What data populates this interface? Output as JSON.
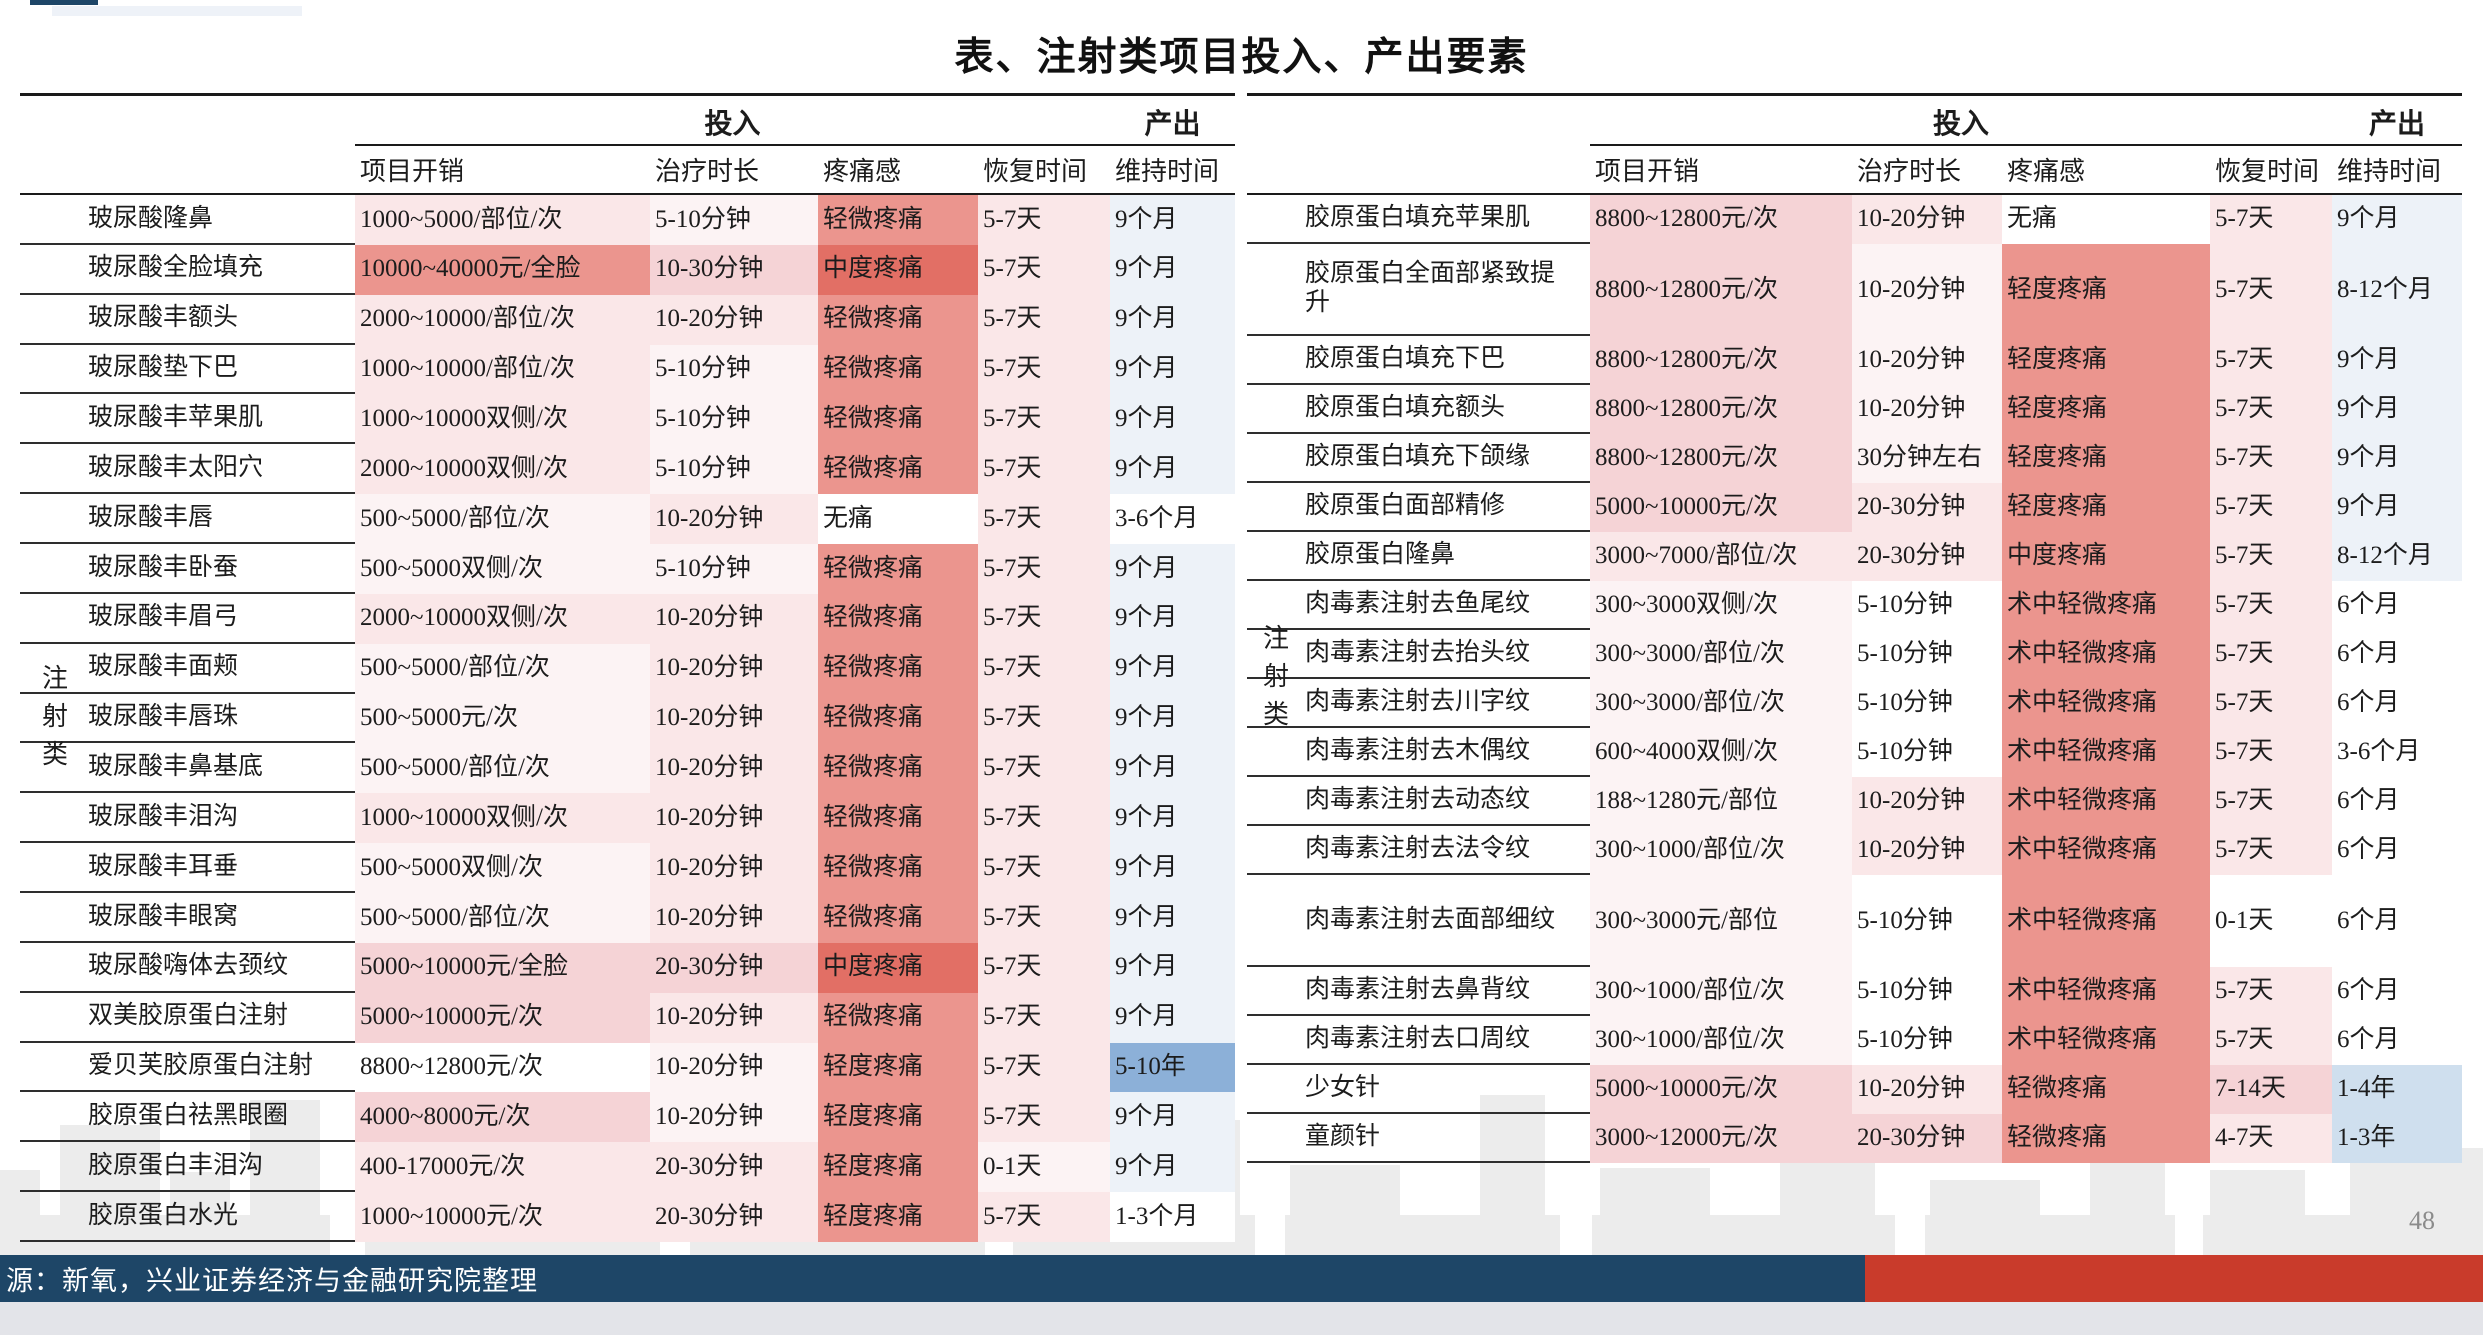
{
  "page": {
    "title": "表、注射类项目投入、产出要素",
    "page_number": "48",
    "source_text": "源：新氧，兴业证券经济与金融研究院整理",
    "category_vertical_label": "注射类"
  },
  "palette": {
    "w": "#ffffff",
    "p1": "#fcf3f4",
    "p2": "#fae7e8",
    "p3": "#f5d3d6",
    "p5": "#eb958e",
    "p6": "#e26f65",
    "b1": "#edf2f8",
    "b2": "#cfdfee",
    "b3": "#8cb0d8",
    "navy": "#1e4667",
    "red": "#c93b2b",
    "skyline_gray": "#ececec"
  },
  "headers": {
    "group_input": "投入",
    "group_output": "产出",
    "cost": "项目开销",
    "duration": "治疗时长",
    "pain": "疼痛感",
    "recovery": "恢复时间",
    "maintain": "维持时间"
  },
  "left_table": {
    "rows": [
      {
        "n": "玻尿酸隆鼻",
        "cost": [
          "1000~5000/部位/次",
          "p2"
        ],
        "dur": [
          "5-10分钟",
          "p1"
        ],
        "pain": [
          "轻微疼痛",
          "p5"
        ],
        "rec": [
          "5-7天",
          "p2"
        ],
        "keep": [
          "9个月",
          "b1"
        ]
      },
      {
        "n": "玻尿酸全脸填充",
        "cost": [
          "10000~40000元/全脸",
          "p5"
        ],
        "dur": [
          "10-30分钟",
          "p3"
        ],
        "pain": [
          "中度疼痛",
          "p6"
        ],
        "rec": [
          "5-7天",
          "p2"
        ],
        "keep": [
          "9个月",
          "b1"
        ]
      },
      {
        "n": "玻尿酸丰额头",
        "cost": [
          "2000~10000/部位/次",
          "p2"
        ],
        "dur": [
          "10-20分钟",
          "p2"
        ],
        "pain": [
          "轻微疼痛",
          "p5"
        ],
        "rec": [
          "5-7天",
          "p2"
        ],
        "keep": [
          "9个月",
          "b1"
        ]
      },
      {
        "n": "玻尿酸垫下巴",
        "cost": [
          "1000~10000/部位/次",
          "p2"
        ],
        "dur": [
          "5-10分钟",
          "p1"
        ],
        "pain": [
          "轻微疼痛",
          "p5"
        ],
        "rec": [
          "5-7天",
          "p2"
        ],
        "keep": [
          "9个月",
          "b1"
        ]
      },
      {
        "n": "玻尿酸丰苹果肌",
        "cost": [
          "1000~10000双侧/次",
          "p2"
        ],
        "dur": [
          "5-10分钟",
          "p1"
        ],
        "pain": [
          "轻微疼痛",
          "p5"
        ],
        "rec": [
          "5-7天",
          "p2"
        ],
        "keep": [
          "9个月",
          "b1"
        ]
      },
      {
        "n": "玻尿酸丰太阳穴",
        "cost": [
          "2000~10000双侧/次",
          "p2"
        ],
        "dur": [
          "5-10分钟",
          "p1"
        ],
        "pain": [
          "轻微疼痛",
          "p5"
        ],
        "rec": [
          "5-7天",
          "p2"
        ],
        "keep": [
          "9个月",
          "b1"
        ]
      },
      {
        "n": "玻尿酸丰唇",
        "cost": [
          "500~5000/部位/次",
          "p1"
        ],
        "dur": [
          "10-20分钟",
          "p2"
        ],
        "pain": [
          "无痛",
          "w"
        ],
        "rec": [
          "5-7天",
          "p2"
        ],
        "keep": [
          "3-6个月",
          "w"
        ]
      },
      {
        "n": "玻尿酸丰卧蚕",
        "cost": [
          "500~5000双侧/次",
          "p1"
        ],
        "dur": [
          "5-10分钟",
          "p1"
        ],
        "pain": [
          "轻微疼痛",
          "p5"
        ],
        "rec": [
          "5-7天",
          "p2"
        ],
        "keep": [
          "9个月",
          "b1"
        ]
      },
      {
        "n": "玻尿酸丰眉弓",
        "cost": [
          "2000~10000双侧/次",
          "p2"
        ],
        "dur": [
          "10-20分钟",
          "p2"
        ],
        "pain": [
          "轻微疼痛",
          "p5"
        ],
        "rec": [
          "5-7天",
          "p2"
        ],
        "keep": [
          "9个月",
          "b1"
        ]
      },
      {
        "n": "玻尿酸丰面颊",
        "cost": [
          "500~5000/部位/次",
          "p1"
        ],
        "dur": [
          "10-20分钟",
          "p2"
        ],
        "pain": [
          "轻微疼痛",
          "p5"
        ],
        "rec": [
          "5-7天",
          "p2"
        ],
        "keep": [
          "9个月",
          "b1"
        ]
      },
      {
        "n": "玻尿酸丰唇珠",
        "cost": [
          "500~5000元/次",
          "p1"
        ],
        "dur": [
          "10-20分钟",
          "p2"
        ],
        "pain": [
          "轻微疼痛",
          "p5"
        ],
        "rec": [
          "5-7天",
          "p2"
        ],
        "keep": [
          "9个月",
          "b1"
        ]
      },
      {
        "n": "玻尿酸丰鼻基底",
        "cost": [
          "500~5000/部位/次",
          "p1"
        ],
        "dur": [
          "10-20分钟",
          "p2"
        ],
        "pain": [
          "轻微疼痛",
          "p5"
        ],
        "rec": [
          "5-7天",
          "p2"
        ],
        "keep": [
          "9个月",
          "b1"
        ]
      },
      {
        "n": "玻尿酸丰泪沟",
        "cost": [
          "1000~10000双侧/次",
          "p2"
        ],
        "dur": [
          "10-20分钟",
          "p2"
        ],
        "pain": [
          "轻微疼痛",
          "p5"
        ],
        "rec": [
          "5-7天",
          "p2"
        ],
        "keep": [
          "9个月",
          "b1"
        ]
      },
      {
        "n": "玻尿酸丰耳垂",
        "cost": [
          "500~5000双侧/次",
          "p1"
        ],
        "dur": [
          "10-20分钟",
          "p2"
        ],
        "pain": [
          "轻微疼痛",
          "p5"
        ],
        "rec": [
          "5-7天",
          "p2"
        ],
        "keep": [
          "9个月",
          "b1"
        ]
      },
      {
        "n": "玻尿酸丰眼窝",
        "cost": [
          "500~5000/部位/次",
          "p1"
        ],
        "dur": [
          "10-20分钟",
          "p2"
        ],
        "pain": [
          "轻微疼痛",
          "p5"
        ],
        "rec": [
          "5-7天",
          "p2"
        ],
        "keep": [
          "9个月",
          "b1"
        ]
      },
      {
        "n": "玻尿酸嗨体去颈纹",
        "cost": [
          "5000~10000元/全脸",
          "p3"
        ],
        "dur": [
          "20-30分钟",
          "p3"
        ],
        "pain": [
          "中度疼痛",
          "p6"
        ],
        "rec": [
          "5-7天",
          "p2"
        ],
        "keep": [
          "9个月",
          "b1"
        ]
      },
      {
        "n": "双美胶原蛋白注射",
        "cost": [
          "5000~10000元/次",
          "p3"
        ],
        "dur": [
          "10-20分钟",
          "p2"
        ],
        "pain": [
          "轻微疼痛",
          "p5"
        ],
        "rec": [
          "5-7天",
          "p2"
        ],
        "keep": [
          "9个月",
          "b1"
        ]
      },
      {
        "n": "爱贝芙胶原蛋白注射",
        "cost": [
          "8800~12800元/次",
          "w"
        ],
        "dur": [
          "10-20分钟",
          "p1"
        ],
        "pain": [
          "轻度疼痛",
          "p5"
        ],
        "rec": [
          "5-7天",
          "p2"
        ],
        "keep": [
          "5-10年",
          "b3"
        ]
      },
      {
        "n": "胶原蛋白祛黑眼圈",
        "cost": [
          "4000~8000元/次",
          "p3"
        ],
        "dur": [
          "10-20分钟",
          "p1"
        ],
        "pain": [
          "轻度疼痛",
          "p5"
        ],
        "rec": [
          "5-7天",
          "p2"
        ],
        "keep": [
          "9个月",
          "b1"
        ]
      },
      {
        "n": "胶原蛋白丰泪沟",
        "cost": [
          "400-17000元/次",
          "p2"
        ],
        "dur": [
          "20-30分钟",
          "p2"
        ],
        "pain": [
          "轻度疼痛",
          "p5"
        ],
        "rec": [
          "0-1天",
          "p1"
        ],
        "keep": [
          "9个月",
          "b1"
        ]
      },
      {
        "n": "胶原蛋白水光",
        "cost": [
          "1000~10000元/次",
          "p2"
        ],
        "dur": [
          "20-30分钟",
          "p2"
        ],
        "pain": [
          "轻度疼痛",
          "p5"
        ],
        "rec": [
          "5-7天",
          "p2"
        ],
        "keep": [
          "1-3个月",
          "w"
        ]
      }
    ]
  },
  "right_table": {
    "rows": [
      {
        "n": "胶原蛋白填充苹果肌",
        "cost": [
          "8800~12800元/次",
          "p3"
        ],
        "dur": [
          "10-20分钟",
          "p2"
        ],
        "pain": [
          "无痛",
          "w"
        ],
        "rec": [
          "5-7天",
          "p2"
        ],
        "keep": [
          "9个月",
          "b1"
        ]
      },
      {
        "n": "胶原蛋白全面部紧致提升",
        "tall": true,
        "cost": [
          "8800~12800元/次",
          "p3"
        ],
        "dur": [
          "10-20分钟",
          "p1"
        ],
        "pain": [
          "轻度疼痛",
          "p5"
        ],
        "rec": [
          "5-7天",
          "p2"
        ],
        "keep": [
          "8-12个月",
          "b1"
        ]
      },
      {
        "n": "胶原蛋白填充下巴",
        "cost": [
          "8800~12800元/次",
          "p3"
        ],
        "dur": [
          "10-20分钟",
          "p1"
        ],
        "pain": [
          "轻度疼痛",
          "p5"
        ],
        "rec": [
          "5-7天",
          "p2"
        ],
        "keep": [
          "9个月",
          "b1"
        ]
      },
      {
        "n": "胶原蛋白填充额头",
        "cost": [
          "8800~12800元/次",
          "p3"
        ],
        "dur": [
          "10-20分钟",
          "p1"
        ],
        "pain": [
          "轻度疼痛",
          "p5"
        ],
        "rec": [
          "5-7天",
          "p2"
        ],
        "keep": [
          "9个月",
          "b1"
        ]
      },
      {
        "n": "胶原蛋白填充下颌缘",
        "cost": [
          "8800~12800元/次",
          "p3"
        ],
        "dur": [
          "30分钟左右",
          "p1"
        ],
        "pain": [
          "轻度疼痛",
          "p5"
        ],
        "rec": [
          "5-7天",
          "p2"
        ],
        "keep": [
          "9个月",
          "b1"
        ]
      },
      {
        "n": "胶原蛋白面部精修",
        "cost": [
          "5000~10000元/次",
          "p3"
        ],
        "dur": [
          "20-30分钟",
          "p2"
        ],
        "pain": [
          "轻度疼痛",
          "p5"
        ],
        "rec": [
          "5-7天",
          "p2"
        ],
        "keep": [
          "9个月",
          "b1"
        ]
      },
      {
        "n": "胶原蛋白隆鼻",
        "cost": [
          "3000~7000/部位/次",
          "p2"
        ],
        "dur": [
          "20-30分钟",
          "p2"
        ],
        "pain": [
          "中度疼痛",
          "p5"
        ],
        "rec": [
          "5-7天",
          "p2"
        ],
        "keep": [
          "8-12个月",
          "b1"
        ]
      },
      {
        "n": "肉毒素注射去鱼尾纹",
        "cost": [
          "300~3000双侧/次",
          "p1"
        ],
        "dur": [
          "5-10分钟",
          "w"
        ],
        "pain": [
          "术中轻微疼痛",
          "p5"
        ],
        "rec": [
          "5-7天",
          "p2"
        ],
        "keep": [
          "6个月",
          "w"
        ]
      },
      {
        "n": "肉毒素注射去抬头纹",
        "cost": [
          "300~3000/部位/次",
          "p1"
        ],
        "dur": [
          "5-10分钟",
          "w"
        ],
        "pain": [
          "术中轻微疼痛",
          "p5"
        ],
        "rec": [
          "5-7天",
          "p2"
        ],
        "keep": [
          "6个月",
          "w"
        ]
      },
      {
        "n": "肉毒素注射去川字纹",
        "cost": [
          "300~3000/部位/次",
          "p1"
        ],
        "dur": [
          "5-10分钟",
          "w"
        ],
        "pain": [
          "术中轻微疼痛",
          "p5"
        ],
        "rec": [
          "5-7天",
          "p2"
        ],
        "keep": [
          "6个月",
          "w"
        ]
      },
      {
        "n": "肉毒素注射去木偶纹",
        "cost": [
          "600~4000双侧/次",
          "p1"
        ],
        "dur": [
          "5-10分钟",
          "w"
        ],
        "pain": [
          "术中轻微疼痛",
          "p5"
        ],
        "rec": [
          "5-7天",
          "p2"
        ],
        "keep": [
          "3-6个月",
          "w"
        ]
      },
      {
        "n": "肉毒素注射去动态纹",
        "cost": [
          "188~1280元/部位",
          "p1"
        ],
        "dur": [
          "10-20分钟",
          "p2"
        ],
        "pain": [
          "术中轻微疼痛",
          "p5"
        ],
        "rec": [
          "5-7天",
          "p2"
        ],
        "keep": [
          "6个月",
          "w"
        ]
      },
      {
        "n": "肉毒素注射去法令纹",
        "cost": [
          "300~1000/部位/次",
          "p1"
        ],
        "dur": [
          "10-20分钟",
          "p2"
        ],
        "pain": [
          "术中轻微疼痛",
          "p5"
        ],
        "rec": [
          "5-7天",
          "p2"
        ],
        "keep": [
          "6个月",
          "w"
        ]
      },
      {
        "n": "肉毒素注射去面部细纹",
        "tall": true,
        "cost": [
          "300~3000元/部位",
          "p1"
        ],
        "dur": [
          "5-10分钟",
          "w"
        ],
        "pain": [
          "术中轻微疼痛",
          "p5"
        ],
        "rec": [
          "0-1天",
          "w"
        ],
        "keep": [
          "6个月",
          "w"
        ]
      },
      {
        "n": "肉毒素注射去鼻背纹",
        "cost": [
          "300~1000/部位/次",
          "p1"
        ],
        "dur": [
          "5-10分钟",
          "w"
        ],
        "pain": [
          "术中轻微疼痛",
          "p5"
        ],
        "rec": [
          "5-7天",
          "p2"
        ],
        "keep": [
          "6个月",
          "w"
        ]
      },
      {
        "n": "肉毒素注射去口周纹",
        "cost": [
          "300~1000/部位/次",
          "p1"
        ],
        "dur": [
          "5-10分钟",
          "w"
        ],
        "pain": [
          "术中轻微疼痛",
          "p5"
        ],
        "rec": [
          "5-7天",
          "p2"
        ],
        "keep": [
          "6个月",
          "w"
        ]
      },
      {
        "n": "少女针",
        "cost": [
          "5000~10000元/次",
          "p3"
        ],
        "dur": [
          "10-20分钟",
          "p2"
        ],
        "pain": [
          "轻微疼痛",
          "p5"
        ],
        "rec": [
          "7-14天",
          "p3"
        ],
        "keep": [
          "1-4年",
          "b2"
        ]
      },
      {
        "n": "童颜针",
        "cost": [
          "3000~12000元/次",
          "p3"
        ],
        "dur": [
          "20-30分钟",
          "p3"
        ],
        "pain": [
          "轻微疼痛",
          "p5"
        ],
        "rec": [
          "4-7天",
          "p2"
        ],
        "keep": [
          "1-3年",
          "b2"
        ]
      }
    ]
  }
}
